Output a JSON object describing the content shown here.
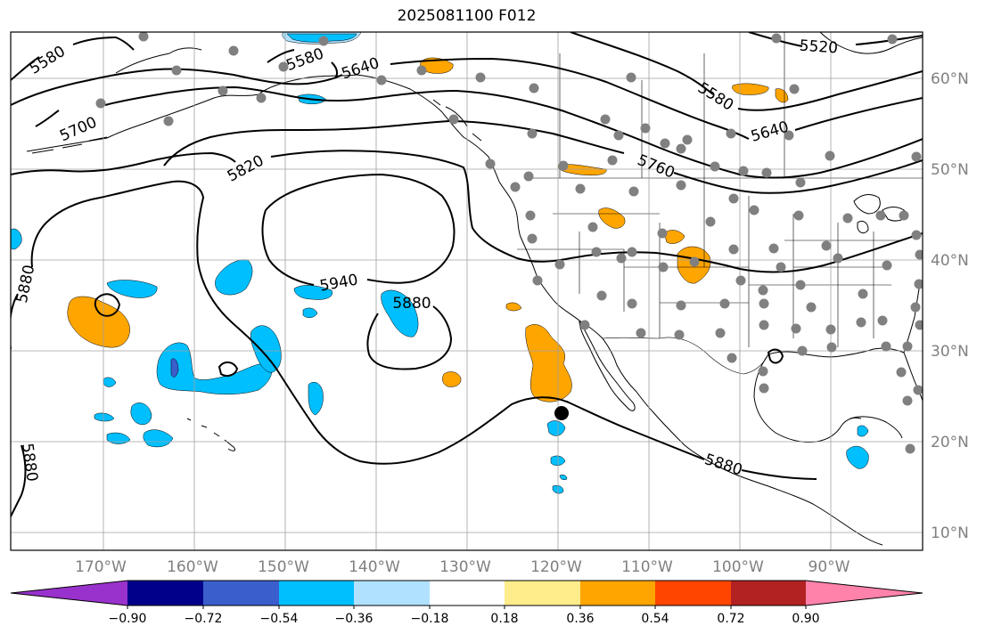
{
  "title": "2025081100 F012",
  "colors": {
    "purple": "#9932cc",
    "navy": "#00008b",
    "royal": "#3a5fcd",
    "deepsky": "#00bfff",
    "lightsky": "#b0e2ff",
    "white": "#ffffff",
    "lightyellow": "#ffec8b",
    "orange": "#ffa500",
    "orangered": "#ff4500",
    "firebrick": "#b22222",
    "pink": "#ff82ab",
    "contour": "#000000",
    "station": "#808080",
    "grid": "#a0a0a0"
  },
  "axes": {
    "lat_labels": [
      "60°N",
      "50°N",
      "40°N",
      "30°N",
      "20°N",
      "10°N"
    ],
    "lon_labels": [
      "170°W",
      "160°W",
      "150°W",
      "140°W",
      "130°W",
      "120°W",
      "110°W",
      "100°W",
      "90°W"
    ]
  },
  "contour_labels": [
    "5580",
    "5580",
    "5640",
    "5520",
    "5700",
    "5580",
    "5640",
    "5820",
    "5760",
    "5880",
    "5940",
    "5880",
    "5880",
    "5880"
  ],
  "colorbar": {
    "ticks": [
      "−0.90",
      "−0.72",
      "−0.54",
      "−0.36",
      "−0.18",
      "0.18",
      "0.36",
      "0.54",
      "0.72",
      "0.90"
    ]
  },
  "chart_data": {
    "type": "heatmap",
    "title": "2025081100 F012",
    "contour_values": [
      5520,
      5580,
      5640,
      5700,
      5760,
      5820,
      5880,
      5940
    ],
    "colorbar_levels": [
      -0.9,
      -0.72,
      -0.54,
      -0.36,
      -0.18,
      0.18,
      0.36,
      0.54,
      0.72,
      0.9
    ],
    "extent": {
      "lon": [
        -180,
        -78
      ],
      "lat": [
        8,
        65
      ]
    },
    "grid": true,
    "marker": {
      "lon": -119.7,
      "lat": 23.2
    }
  }
}
